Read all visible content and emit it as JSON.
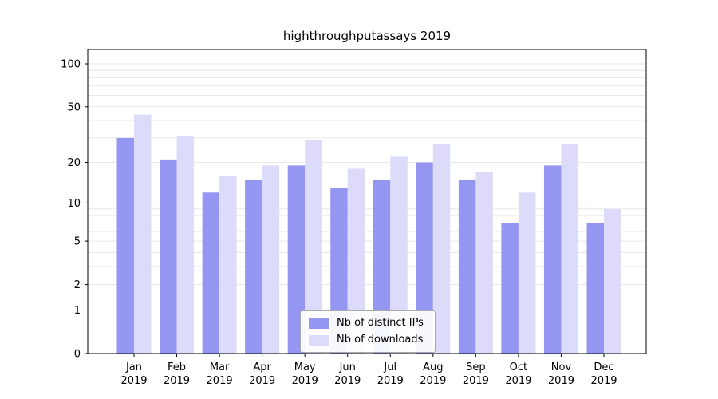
{
  "chart_data": {
    "type": "bar",
    "title": "highthroughputassays 2019",
    "categories": [
      "Jan",
      "Feb",
      "Mar",
      "Apr",
      "May",
      "Jun",
      "Jul",
      "Aug",
      "Sep",
      "Oct",
      "Nov",
      "Dec"
    ],
    "year_label": "2019",
    "series": [
      {
        "name": "Nb of distinct IPs",
        "color": "#9595f2",
        "values": [
          30,
          21,
          12,
          15,
          19,
          13,
          15,
          20,
          15,
          7,
          19,
          7
        ]
      },
      {
        "name": "Nb of downloads",
        "color": "#dcdcfa",
        "values": [
          44,
          31,
          16,
          19,
          29,
          18,
          22,
          27,
          17,
          12,
          27,
          9
        ]
      }
    ],
    "yscale": "symlog",
    "ylim": [
      0,
      125
    ],
    "yticks": [
      0,
      1,
      2,
      5,
      10,
      20,
      50,
      100
    ],
    "gridlines": [
      1,
      2,
      3,
      4,
      5,
      6,
      7,
      8,
      9,
      10,
      20,
      30,
      40,
      50,
      60,
      70,
      80,
      90,
      100
    ],
    "grid_color": "#e7e7e7",
    "axis_color": "#000000",
    "legend_position": "lower center",
    "xlabel": "",
    "ylabel": ""
  }
}
